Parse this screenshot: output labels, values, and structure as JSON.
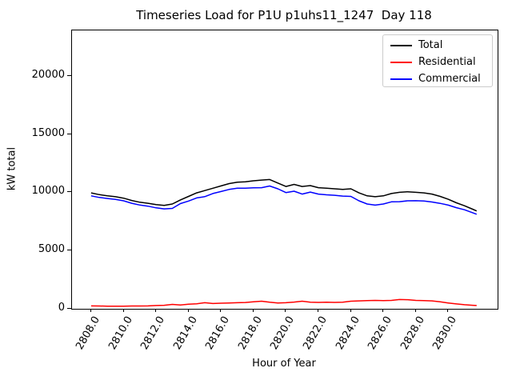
{
  "chart_data": {
    "type": "line",
    "title": "Timeseries Load for P1U p1uhs11_1247  Day 118",
    "xlabel": "Hour of Year",
    "ylabel": "kW total",
    "grid": false,
    "legend_position": "upper right",
    "xlim": [
      2806.82,
      2833.04
    ],
    "ylim": [
      0,
      23903
    ],
    "xticks": [
      2808,
      2810,
      2812,
      2814,
      2816,
      2818,
      2820,
      2822,
      2824,
      2826,
      2828,
      2830
    ],
    "xtick_labels": [
      "2808.0",
      "2810.0",
      "2812.0",
      "2814.0",
      "2816.0",
      "2818.0",
      "2820.0",
      "2822.0",
      "2824.0",
      "2826.0",
      "2828.0",
      "2830.0"
    ],
    "yticks": [
      0,
      5000,
      10000,
      15000,
      20000
    ],
    "ytick_labels": [
      "0",
      "5000",
      "10000",
      "15000",
      "20000"
    ],
    "x": [
      2808.0,
      2808.5,
      2809.0,
      2809.5,
      2810.0,
      2810.5,
      2811.0,
      2811.5,
      2812.0,
      2812.5,
      2813.0,
      2813.5,
      2814.0,
      2814.5,
      2815.0,
      2815.5,
      2816.0,
      2816.5,
      2817.0,
      2817.5,
      2818.0,
      2818.5,
      2819.0,
      2819.5,
      2820.0,
      2820.5,
      2821.0,
      2821.5,
      2822.0,
      2822.5,
      2823.0,
      2823.5,
      2824.0,
      2824.5,
      2825.0,
      2825.5,
      2826.0,
      2826.5,
      2827.0,
      2827.5,
      2828.0,
      2828.5,
      2829.0,
      2829.5,
      2830.0,
      2830.5,
      2831.0,
      2831.5,
      2831.75
    ],
    "series": [
      {
        "name": "Total",
        "color": "#000000",
        "values": [
          9950,
          9800,
          9700,
          9620,
          9500,
          9300,
          9150,
          9060,
          8950,
          8880,
          9000,
          9350,
          9650,
          9950,
          10150,
          10350,
          10550,
          10750,
          10870,
          10900,
          10990,
          11050,
          11100,
          10800,
          10500,
          10680,
          10500,
          10580,
          10400,
          10350,
          10300,
          10250,
          10300,
          9950,
          9700,
          9620,
          9700,
          9900,
          10000,
          10050,
          10000,
          9950,
          9850,
          9650,
          9400,
          9100,
          8850,
          8550,
          8400
        ]
      },
      {
        "name": "Residential",
        "color": "#ff0000",
        "values": [
          250,
          240,
          230,
          230,
          230,
          240,
          240,
          250,
          280,
          300,
          380,
          320,
          400,
          430,
          520,
          450,
          480,
          500,
          520,
          540,
          600,
          650,
          560,
          500,
          520,
          580,
          650,
          560,
          550,
          560,
          550,
          570,
          650,
          680,
          700,
          720,
          700,
          720,
          800,
          780,
          720,
          700,
          680,
          600,
          500,
          420,
          350,
          300,
          280
        ]
      },
      {
        "name": "Commercial",
        "color": "#0000ff",
        "values": [
          9700,
          9560,
          9470,
          9390,
          9270,
          9060,
          8910,
          8810,
          8670,
          8580,
          8620,
          9030,
          9250,
          9520,
          9630,
          9900,
          10070,
          10250,
          10350,
          10360,
          10390,
          10400,
          10540,
          10300,
          9980,
          10100,
          9850,
          10020,
          9850,
          9790,
          9750,
          9680,
          9650,
          9270,
          9000,
          8900,
          9000,
          9180,
          9200,
          9270,
          9280,
          9250,
          9170,
          9050,
          8900,
          8680,
          8500,
          8250,
          8120
        ]
      }
    ]
  }
}
